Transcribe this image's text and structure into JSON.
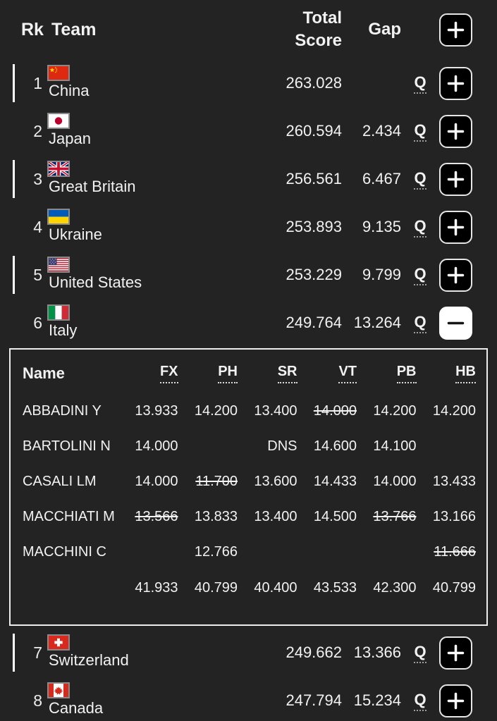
{
  "colors": {
    "background": "#232323",
    "text": "#f2f2f2",
    "button_fill": "#000000",
    "button_border": "#e6e6e6",
    "expanded_button_fill": "#ffffff",
    "marker_bar": "#ffffff"
  },
  "header": {
    "rank_label": "Rk",
    "team_label": "Team",
    "total_score_line1": "Total",
    "total_score_line2": "Score",
    "gap_label": "Gap",
    "expand_all_icon": "plus-icon"
  },
  "standings": [
    {
      "rank": "1",
      "team": "China",
      "flag": "cn",
      "total": "263.028",
      "gap": "",
      "qual": "Q",
      "expanded": false,
      "marker": true,
      "row_icon": "plus-icon"
    },
    {
      "rank": "2",
      "team": "Japan",
      "flag": "jp",
      "total": "260.594",
      "gap": "2.434",
      "qual": "Q",
      "expanded": false,
      "marker": false,
      "row_icon": "plus-icon"
    },
    {
      "rank": "3",
      "team": "Great Britain",
      "flag": "gb",
      "total": "256.561",
      "gap": "6.467",
      "qual": "Q",
      "expanded": false,
      "marker": true,
      "row_icon": "plus-icon"
    },
    {
      "rank": "4",
      "team": "Ukraine",
      "flag": "ua",
      "total": "253.893",
      "gap": "9.135",
      "qual": "Q",
      "expanded": false,
      "marker": false,
      "row_icon": "plus-icon"
    },
    {
      "rank": "5",
      "team": "United States",
      "flag": "us",
      "total": "253.229",
      "gap": "9.799",
      "qual": "Q",
      "expanded": false,
      "marker": true,
      "row_icon": "plus-icon"
    },
    {
      "rank": "6",
      "team": "Italy",
      "flag": "it",
      "total": "249.764",
      "gap": "13.264",
      "qual": "Q",
      "expanded": true,
      "marker": false,
      "row_icon": "minus-icon"
    },
    {
      "rank": "7",
      "team": "Switzerland",
      "flag": "ch",
      "total": "249.662",
      "gap": "13.366",
      "qual": "Q",
      "expanded": false,
      "marker": true,
      "row_icon": "plus-icon"
    },
    {
      "rank": "8",
      "team": "Canada",
      "flag": "ca",
      "total": "247.794",
      "gap": "15.234",
      "qual": "Q",
      "expanded": false,
      "marker": false,
      "row_icon": "plus-icon"
    }
  ],
  "detail_table": {
    "team": "Italy",
    "name_column_label": "Name",
    "columns": [
      "FX",
      "PH",
      "SR",
      "VT",
      "PB",
      "HB"
    ],
    "rows": [
      {
        "name": "ABBADINI Y",
        "scores": [
          {
            "v": "13.933",
            "struck": false
          },
          {
            "v": "14.200",
            "struck": false
          },
          {
            "v": "13.400",
            "struck": false
          },
          {
            "v": "14.000",
            "struck": true
          },
          {
            "v": "14.200",
            "struck": false
          },
          {
            "v": "14.200",
            "struck": false
          }
        ]
      },
      {
        "name": "BARTOLINI N",
        "scores": [
          {
            "v": "14.000",
            "struck": false
          },
          {
            "v": "",
            "struck": false
          },
          {
            "v": "DNS",
            "struck": false
          },
          {
            "v": "14.600",
            "struck": false
          },
          {
            "v": "14.100",
            "struck": false
          },
          {
            "v": "",
            "struck": false
          }
        ]
      },
      {
        "name": "CASALI LM",
        "scores": [
          {
            "v": "14.000",
            "struck": false
          },
          {
            "v": "11.700",
            "struck": true
          },
          {
            "v": "13.600",
            "struck": false
          },
          {
            "v": "14.433",
            "struck": false
          },
          {
            "v": "14.000",
            "struck": false
          },
          {
            "v": "13.433",
            "struck": false
          }
        ]
      },
      {
        "name": "MACCHIATI M",
        "scores": [
          {
            "v": "13.566",
            "struck": true
          },
          {
            "v": "13.833",
            "struck": false
          },
          {
            "v": "13.400",
            "struck": false
          },
          {
            "v": "14.500",
            "struck": false
          },
          {
            "v": "13.766",
            "struck": true
          },
          {
            "v": "13.166",
            "struck": false
          }
        ]
      },
      {
        "name": "MACCHINI C",
        "scores": [
          {
            "v": "",
            "struck": false
          },
          {
            "v": "12.766",
            "struck": false
          },
          {
            "v": "",
            "struck": false
          },
          {
            "v": "",
            "struck": false
          },
          {
            "v": "",
            "struck": false
          },
          {
            "v": "11.666",
            "struck": true
          }
        ]
      }
    ],
    "totals": [
      "41.933",
      "40.799",
      "40.400",
      "43.533",
      "42.300",
      "40.799"
    ]
  }
}
